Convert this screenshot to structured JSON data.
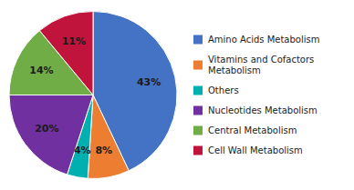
{
  "chart_data": {
    "type": "pie",
    "categories": [
      "Amino Acids Metabolism",
      "Vitamins and Cofactors\nMetabolism",
      "Others",
      "Nucleotides Metabolism",
      "Central Metabolism",
      "Cell Wall Metabolism"
    ],
    "values": [
      43,
      8,
      4,
      20,
      14,
      11
    ],
    "value_labels": [
      "43%",
      "8%",
      "4%",
      "20%",
      "14%",
      "11%"
    ],
    "colors": [
      "#4472C4",
      "#ED7D31",
      "#00B0B0",
      "#7030A0",
      "#70AD47",
      "#C0143C"
    ],
    "data_labels": true,
    "legend": "right"
  }
}
